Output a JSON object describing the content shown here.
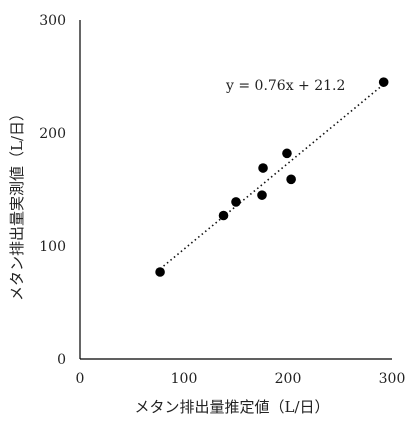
{
  "chart_data": {
    "type": "scatter",
    "xlabel": "メタン排出量推定値（L/日）",
    "ylabel": "メタン排出量実測値（L/日）",
    "xlim": [
      0,
      300
    ],
    "ylim": [
      0,
      300
    ],
    "xticks": [
      "0",
      "100",
      "200",
      "300"
    ],
    "yticks": [
      "0",
      "100",
      "200",
      "300"
    ],
    "points": [
      {
        "x": 77,
        "y": 77
      },
      {
        "x": 138,
        "y": 127
      },
      {
        "x": 150,
        "y": 139
      },
      {
        "x": 175,
        "y": 145
      },
      {
        "x": 176,
        "y": 169
      },
      {
        "x": 199,
        "y": 182
      },
      {
        "x": 203,
        "y": 159
      },
      {
        "x": 292,
        "y": 245
      }
    ],
    "trendline": {
      "slope": 0.76,
      "intercept": 21.2,
      "x_range": [
        77,
        292
      ],
      "style": "dotted"
    },
    "annotation": "y = 0.76x + 21.2",
    "grid": false,
    "legend": "none"
  }
}
